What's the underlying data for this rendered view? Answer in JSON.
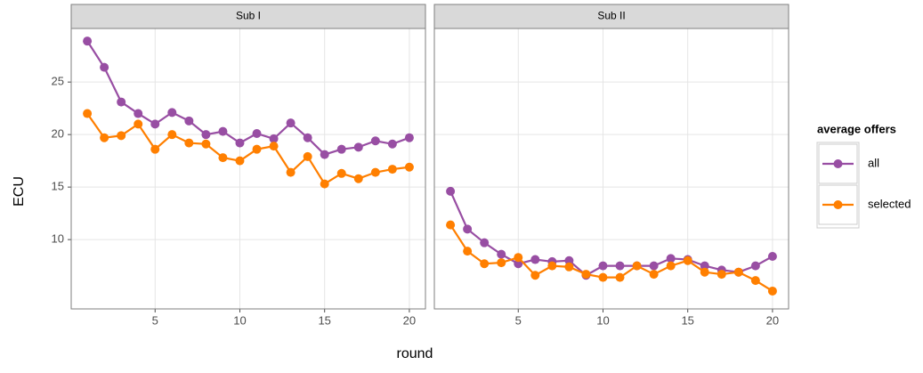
{
  "chart_data": [
    {
      "type": "line",
      "title": "Sub I",
      "y_label": "ECU",
      "x_label": "round",
      "legend_title": "average offers",
      "x": [
        1,
        2,
        3,
        4,
        5,
        6,
        7,
        8,
        9,
        10,
        11,
        12,
        13,
        14,
        15,
        16,
        17,
        18,
        19,
        20
      ],
      "series": [
        {
          "name": "all",
          "color": "#984ea3",
          "values": [
            28.9,
            26.4,
            23.1,
            22.0,
            21.0,
            22.1,
            21.3,
            20.0,
            20.3,
            19.2,
            20.1,
            19.6,
            21.1,
            19.7,
            18.1,
            18.6,
            18.8,
            19.4,
            19.1,
            19.7
          ]
        },
        {
          "name": "selected",
          "color": "#ff7f00",
          "values": [
            22.0,
            19.7,
            19.9,
            21.0,
            18.6,
            20.0,
            19.2,
            19.1,
            17.8,
            17.5,
            18.6,
            18.9,
            16.4,
            17.9,
            15.3,
            16.3,
            15.8,
            16.4,
            16.7,
            16.9
          ]
        }
      ],
      "xlim": [
        0.05,
        20.95
      ],
      "xticks": [
        5,
        10,
        15,
        20
      ],
      "ylim": [
        3.4,
        30.1
      ],
      "yticks": [
        10,
        15,
        20,
        25
      ],
      "grid": true
    },
    {
      "type": "line",
      "title": "Sub II",
      "x": [
        1,
        2,
        3,
        4,
        5,
        6,
        7,
        8,
        9,
        10,
        11,
        12,
        13,
        14,
        15,
        16,
        17,
        18,
        19,
        20
      ],
      "series": [
        {
          "color": "#984ea3",
          "values": [
            14.6,
            11.0,
            9.7,
            8.6,
            7.7,
            8.1,
            7.9,
            8.0,
            6.6,
            7.5,
            7.5,
            7.5,
            7.5,
            8.2,
            8.1,
            7.5,
            7.1,
            6.9,
            7.5,
            8.4
          ]
        },
        {
          "color": "#ff7f00",
          "values": [
            11.4,
            8.9,
            7.7,
            7.8,
            8.3,
            6.6,
            7.5,
            7.4,
            6.7,
            6.4,
            6.4,
            7.5,
            6.7,
            7.5,
            8.0,
            6.9,
            6.7,
            6.9,
            6.1,
            5.1
          ]
        }
      ],
      "xlim": [
        0.05,
        20.95
      ],
      "xticks": [
        5,
        10,
        15,
        20
      ],
      "ylim": [
        3.4,
        30.1
      ],
      "yticks": [
        10,
        15,
        20,
        25
      ],
      "grid": true
    }
  ]
}
